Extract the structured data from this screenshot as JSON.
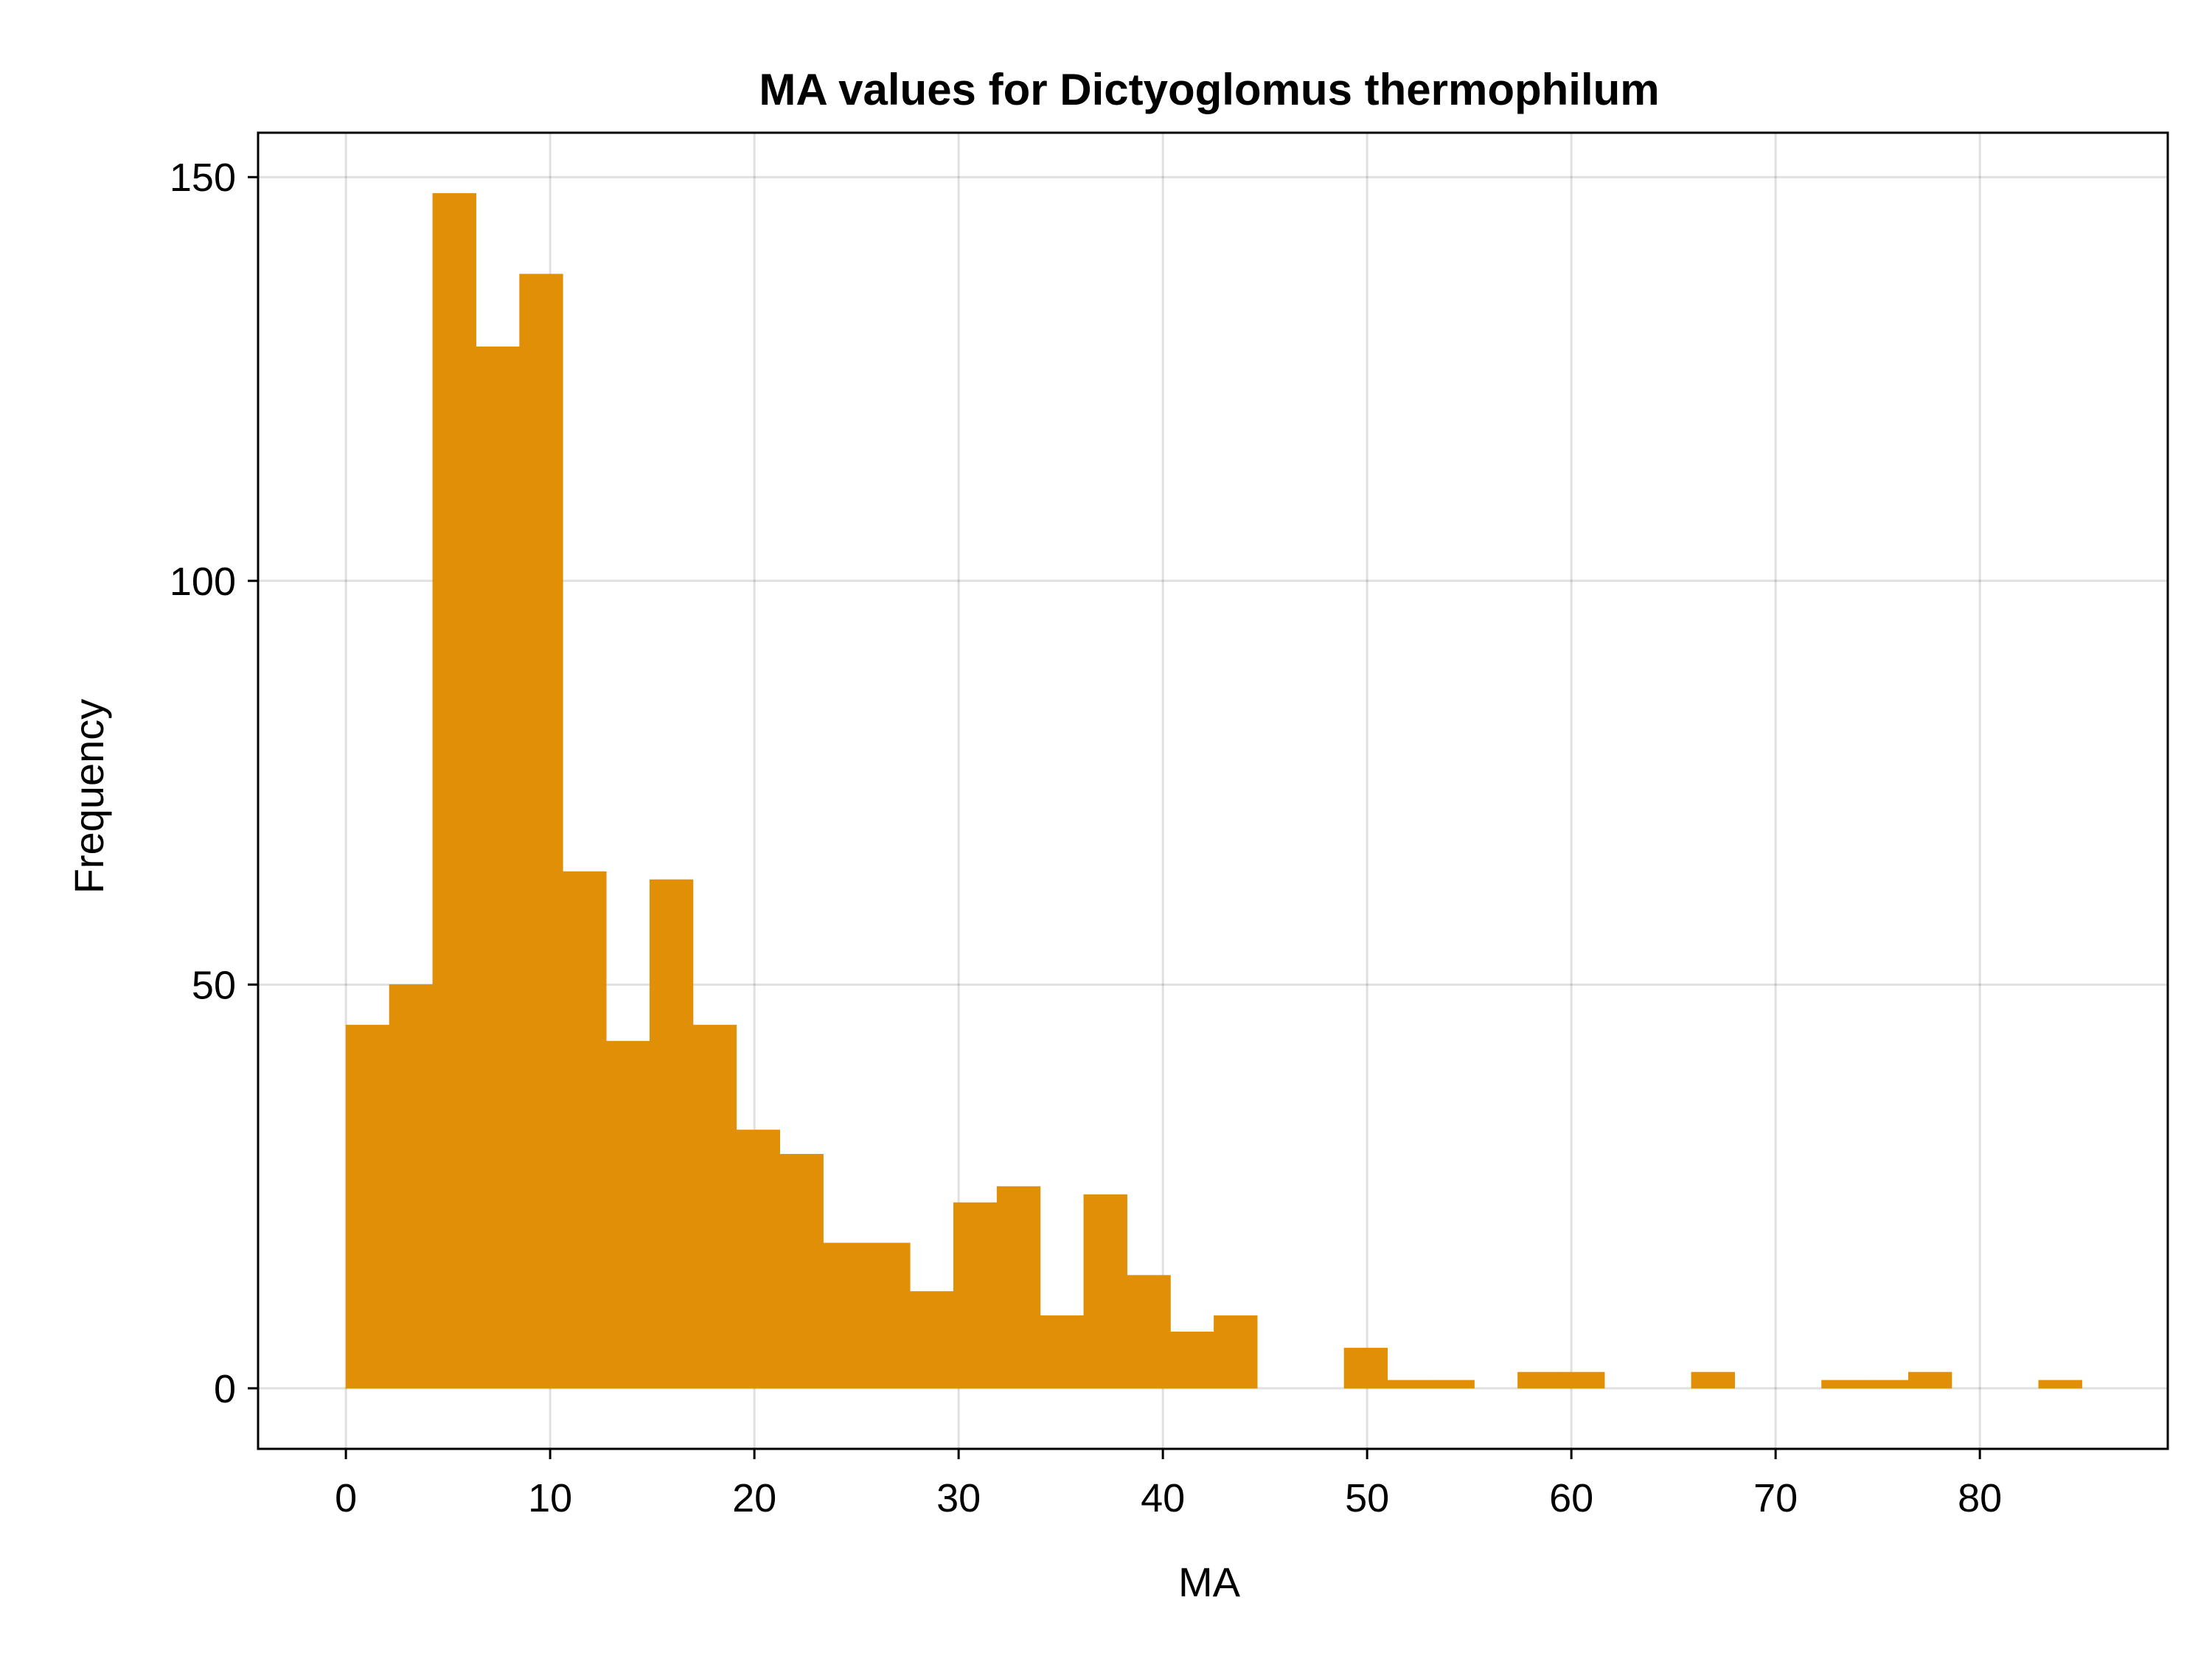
{
  "chart_data": {
    "type": "bar",
    "title": "MA values for Dictyoglomus thermophilum",
    "xlabel": "MA",
    "ylabel": "Frequency",
    "xlim": [
      -4.3,
      89.2
    ],
    "ylim": [
      -7.5,
      155.5
    ],
    "bin_width": 2.125,
    "bin_start": 0,
    "xticks": [
      0,
      10,
      20,
      30,
      40,
      50,
      60,
      70,
      80
    ],
    "yticks": [
      0,
      50,
      100,
      150
    ],
    "grid": true,
    "color": "#E08F07",
    "values": [
      45,
      50,
      148,
      129,
      138,
      64,
      43,
      63,
      45,
      32,
      29,
      18,
      18,
      12,
      23,
      25,
      9,
      24,
      14,
      7,
      9,
      0,
      0,
      5,
      1,
      1,
      0,
      2,
      2,
      0,
      0,
      2,
      0,
      0,
      1,
      1,
      2,
      0,
      0,
      1
    ]
  }
}
